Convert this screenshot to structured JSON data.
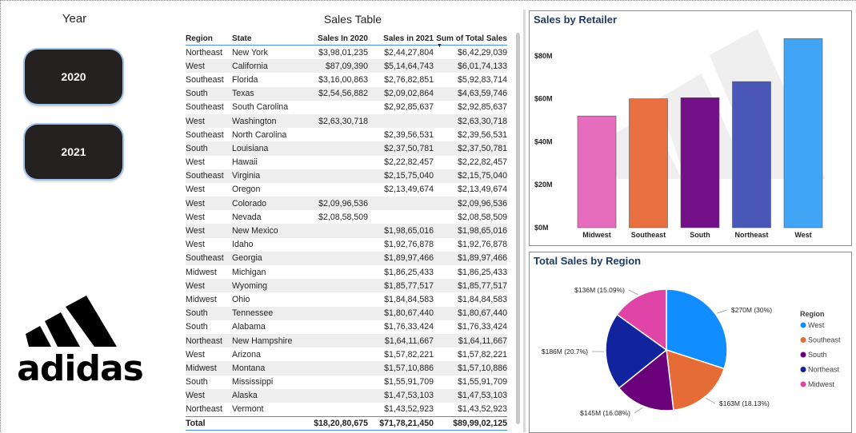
{
  "slicer": {
    "title": "Year",
    "options": [
      "2020",
      "2021"
    ]
  },
  "logo": {
    "wordmark": "adidas"
  },
  "table": {
    "title": "Sales Table",
    "columns": [
      "Region",
      "State",
      "Sales In 2020",
      "Sales in 2021",
      "Sum of Total Sales"
    ],
    "rows": [
      [
        "Northeast",
        "New York",
        "$3,98,01,235",
        "$2,44,27,804",
        "$6,42,29,039"
      ],
      [
        "West",
        "California",
        "$87,09,390",
        "$5,14,64,743",
        "$6,01,74,133"
      ],
      [
        "Southeast",
        "Florida",
        "$3,16,00,863",
        "$2,76,82,851",
        "$5,92,83,714"
      ],
      [
        "South",
        "Texas",
        "$2,54,56,882",
        "$2,09,02,864",
        "$4,63,59,746"
      ],
      [
        "Southeast",
        "South Carolina",
        "",
        "$2,92,85,637",
        "$2,92,85,637"
      ],
      [
        "West",
        "Washington",
        "$2,63,30,718",
        "",
        "$2,63,30,718"
      ],
      [
        "Southeast",
        "North Carolina",
        "",
        "$2,39,56,531",
        "$2,39,56,531"
      ],
      [
        "South",
        "Louisiana",
        "",
        "$2,37,50,781",
        "$2,37,50,781"
      ],
      [
        "West",
        "Hawaii",
        "",
        "$2,22,82,457",
        "$2,22,82,457"
      ],
      [
        "Southeast",
        "Virginia",
        "",
        "$2,15,75,040",
        "$2,15,75,040"
      ],
      [
        "West",
        "Oregon",
        "",
        "$2,13,49,674",
        "$2,13,49,674"
      ],
      [
        "West",
        "Colorado",
        "$2,09,96,536",
        "",
        "$2,09,96,536"
      ],
      [
        "West",
        "Nevada",
        "$2,08,58,509",
        "",
        "$2,08,58,509"
      ],
      [
        "West",
        "New Mexico",
        "",
        "$1,98,65,016",
        "$1,98,65,016"
      ],
      [
        "West",
        "Idaho",
        "",
        "$1,92,76,878",
        "$1,92,76,878"
      ],
      [
        "Southeast",
        "Georgia",
        "",
        "$1,89,97,466",
        "$1,89,97,466"
      ],
      [
        "Midwest",
        "Michigan",
        "",
        "$1,86,25,433",
        "$1,86,25,433"
      ],
      [
        "West",
        "Wyoming",
        "",
        "$1,85,77,517",
        "$1,85,77,517"
      ],
      [
        "Midwest",
        "Ohio",
        "",
        "$1,84,84,583",
        "$1,84,84,583"
      ],
      [
        "South",
        "Tennessee",
        "",
        "$1,80,67,440",
        "$1,80,67,440"
      ],
      [
        "South",
        "Alabama",
        "",
        "$1,76,33,424",
        "$1,76,33,424"
      ],
      [
        "Northeast",
        "New Hampshire",
        "",
        "$1,64,11,667",
        "$1,64,11,667"
      ],
      [
        "West",
        "Arizona",
        "",
        "$1,57,82,221",
        "$1,57,82,221"
      ],
      [
        "Midwest",
        "Montana",
        "",
        "$1,57,10,886",
        "$1,57,10,886"
      ],
      [
        "South",
        "Mississippi",
        "",
        "$1,55,91,709",
        "$1,55,91,709"
      ],
      [
        "West",
        "Alaska",
        "",
        "$1,47,53,103",
        "$1,47,53,103"
      ],
      [
        "Northeast",
        "Vermont",
        "",
        "$1,43,52,923",
        "$1,43,52,923"
      ]
    ],
    "total": [
      "Total",
      "",
      "$18,20,80,675",
      "$71,78,21,450",
      "$89,99,02,125"
    ]
  },
  "chart_data": [
    {
      "type": "bar",
      "title": "Sales by Retailer",
      "categories": [
        "Midwest",
        "Southeast",
        "South",
        "Northeast",
        "West"
      ],
      "values": [
        52,
        60,
        60.5,
        68,
        88
      ],
      "colors": [
        "#E66CBE",
        "#E87040",
        "#730F87",
        "#4B57B7",
        "#41A5F5"
      ],
      "yticks": [
        "$0M",
        "$20M",
        "$40M",
        "$60M",
        "$80M"
      ],
      "ylim": [
        0,
        90
      ]
    },
    {
      "type": "pie",
      "title": "Total Sales by Region",
      "legend_title": "Region",
      "legend": [
        "West",
        "Southeast",
        "South",
        "Northeast",
        "Midwest"
      ],
      "slices": [
        {
          "name": "West",
          "value": 30,
          "label": "$270M (30%)",
          "color": "#118DFF"
        },
        {
          "name": "Southeast",
          "value": 18.13,
          "label": "$163M (18.13%)",
          "color": "#E66C37"
        },
        {
          "name": "South",
          "value": 16.08,
          "label": "$145M (16.08%)",
          "color": "#6B007B"
        },
        {
          "name": "Northeast",
          "value": 20.7,
          "label": "$186M (20.7%)",
          "color": "#12239E"
        },
        {
          "name": "Midwest",
          "value": 15.09,
          "label": "$136M (15.09%)",
          "color": "#E044A7"
        }
      ]
    }
  ]
}
